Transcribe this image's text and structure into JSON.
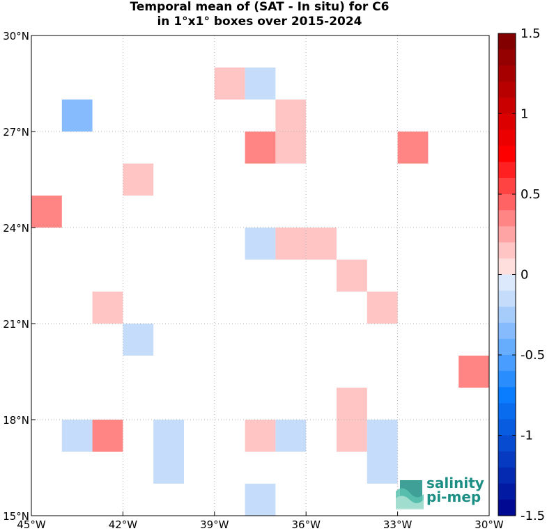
{
  "title_line1": "Temporal mean of (SAT - In situ) for C6",
  "title_line2": "in 1°x1° boxes over 2015-2024",
  "map": {
    "lon_range": [
      -45,
      -30
    ],
    "lat_range": [
      15,
      30
    ],
    "x_ticks": [
      {
        "value": -45,
        "label": "45°W"
      },
      {
        "value": -42,
        "label": "42°W"
      },
      {
        "value": -39,
        "label": "39°W"
      },
      {
        "value": -36,
        "label": "36°W"
      },
      {
        "value": -33,
        "label": "33°W"
      },
      {
        "value": -30,
        "label": "30°W"
      }
    ],
    "y_ticks": [
      {
        "value": 30,
        "label": "30°N"
      },
      {
        "value": 27,
        "label": "27°N"
      },
      {
        "value": 24,
        "label": "24°N"
      },
      {
        "value": 21,
        "label": "21°N"
      },
      {
        "value": 18,
        "label": "18°N"
      },
      {
        "value": 15,
        "label": "15°N"
      }
    ],
    "grid": true,
    "cells": [
      {
        "lon": -39,
        "lat": 28,
        "value": 0.15
      },
      {
        "lon": -38,
        "lat": 28,
        "value": -0.15
      },
      {
        "lon": -44,
        "lat": 27,
        "value": -0.35
      },
      {
        "lon": -37,
        "lat": 27,
        "value": 0.15
      },
      {
        "lon": -38,
        "lat": 26,
        "value": 0.35
      },
      {
        "lon": -37,
        "lat": 26,
        "value": 0.15
      },
      {
        "lon": -33,
        "lat": 26,
        "value": 0.35
      },
      {
        "lon": -42,
        "lat": 25,
        "value": 0.15
      },
      {
        "lon": -45,
        "lat": 24,
        "value": 0.35
      },
      {
        "lon": -38,
        "lat": 23,
        "value": -0.15
      },
      {
        "lon": -37,
        "lat": 23,
        "value": 0.15
      },
      {
        "lon": -36,
        "lat": 23,
        "value": 0.15
      },
      {
        "lon": -35,
        "lat": 22,
        "value": 0.15
      },
      {
        "lon": -43,
        "lat": 21,
        "value": 0.15
      },
      {
        "lon": -34,
        "lat": 21,
        "value": 0.15
      },
      {
        "lon": -42,
        "lat": 20,
        "value": -0.15
      },
      {
        "lon": -31,
        "lat": 19,
        "value": 0.35
      },
      {
        "lon": -35,
        "lat": 18,
        "value": 0.15
      },
      {
        "lon": -44,
        "lat": 17,
        "value": -0.15
      },
      {
        "lon": -43,
        "lat": 17,
        "value": 0.35
      },
      {
        "lon": -41,
        "lat": 17,
        "value": -0.15
      },
      {
        "lon": -38,
        "lat": 17,
        "value": 0.15
      },
      {
        "lon": -37,
        "lat": 17,
        "value": -0.2
      },
      {
        "lon": -35,
        "lat": 17,
        "value": 0.15
      },
      {
        "lon": -34,
        "lat": 17,
        "value": -0.15
      },
      {
        "lon": -41,
        "lat": 16,
        "value": -0.15
      },
      {
        "lon": -34,
        "lat": 16,
        "value": -0.15
      },
      {
        "lon": -38,
        "lat": 15,
        "value": -0.15
      }
    ]
  },
  "colorbar": {
    "range": [
      -1.5,
      1.5
    ],
    "levels": 30,
    "tick_labels": [
      {
        "value": 1.5,
        "label": "1.5"
      },
      {
        "value": 1,
        "label": "1"
      },
      {
        "value": 0.5,
        "label": "0.5"
      },
      {
        "value": 0,
        "label": "0"
      },
      {
        "value": -0.5,
        "label": "-0.5"
      },
      {
        "value": -1,
        "label": "-1"
      },
      {
        "value": -1.5,
        "label": "-1.5"
      }
    ],
    "colors": {
      "pos_strong": "#7a0000",
      "pos_mid": "#ff0000",
      "pos_light": "#ffdede",
      "neutral": "#ffffff",
      "neg_light": "#dce8fb",
      "neg_mid": "#0a7dff",
      "neg_strong": "#00008a"
    }
  },
  "logo": {
    "line1": "salinity",
    "line2": "pi-mep",
    "color": "#1c8f85"
  }
}
